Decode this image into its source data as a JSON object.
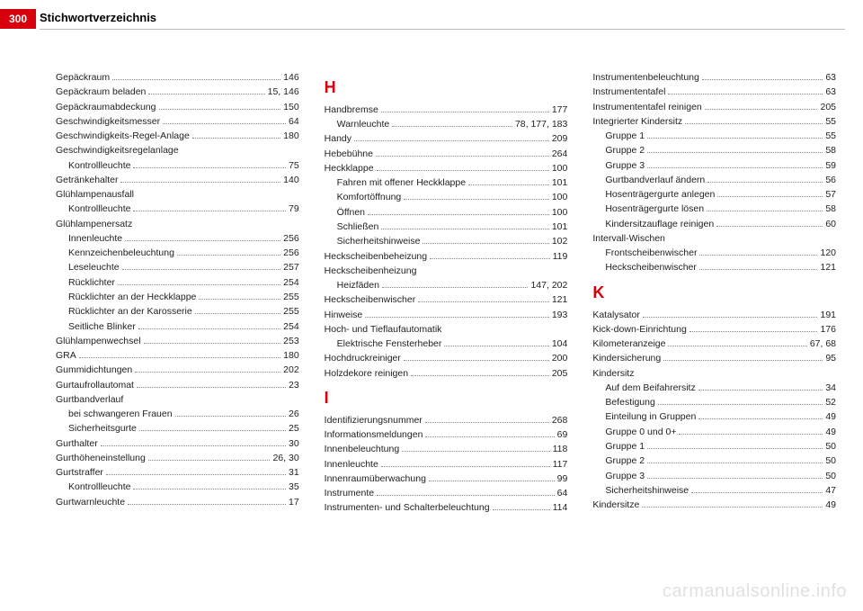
{
  "header": {
    "page_number": "300",
    "title": "Stichwortverzeichnis"
  },
  "watermark": "carmanualsonline.info",
  "columns": [
    [
      {
        "t": "entry",
        "label": "Gepäckraum",
        "page": "146"
      },
      {
        "t": "entry",
        "label": "Gepäckraum beladen",
        "page": "15, 146"
      },
      {
        "t": "entry",
        "label": "Gepäckraumabdeckung",
        "page": "150"
      },
      {
        "t": "entry",
        "label": "Geschwindigkeitsmesser",
        "page": "64"
      },
      {
        "t": "entry",
        "label": "Geschwindigkeits-Regel-Anlage",
        "page": "180"
      },
      {
        "t": "head",
        "label": "Geschwindigkeitsregelanlage"
      },
      {
        "t": "sub",
        "label": "Kontrollleuchte",
        "page": "75"
      },
      {
        "t": "entry",
        "label": "Getränkehalter",
        "page": "140"
      },
      {
        "t": "head",
        "label": "Glühlampenausfall"
      },
      {
        "t": "sub",
        "label": "Kontrollleuchte",
        "page": "79"
      },
      {
        "t": "head",
        "label": "Glühlampenersatz"
      },
      {
        "t": "sub",
        "label": "Innenleuchte",
        "page": "256"
      },
      {
        "t": "sub",
        "label": "Kennzeichenbeleuchtung",
        "page": "256"
      },
      {
        "t": "sub",
        "label": "Leseleuchte",
        "page": "257"
      },
      {
        "t": "sub",
        "label": "Rücklichter",
        "page": "254"
      },
      {
        "t": "sub",
        "label": "Rücklichter an der Heckklappe",
        "page": "255"
      },
      {
        "t": "sub",
        "label": "Rücklichter an der Karosserie",
        "page": "255"
      },
      {
        "t": "sub",
        "label": "Seitliche Blinker",
        "page": "254"
      },
      {
        "t": "entry",
        "label": "Glühlampenwechsel",
        "page": "253"
      },
      {
        "t": "entry",
        "label": "GRA",
        "page": "180"
      },
      {
        "t": "entry",
        "label": "Gummidichtungen",
        "page": "202"
      },
      {
        "t": "entry",
        "label": "Gurtaufrollautomat",
        "page": "23"
      },
      {
        "t": "head",
        "label": "Gurtbandverlauf"
      },
      {
        "t": "sub",
        "label": "bei schwangeren Frauen",
        "page": "26"
      },
      {
        "t": "sub",
        "label": "Sicherheitsgurte",
        "page": "25"
      },
      {
        "t": "entry",
        "label": "Gurthalter",
        "page": "30"
      },
      {
        "t": "entry",
        "label": "Gurthöheneinstellung",
        "page": "26, 30"
      },
      {
        "t": "entry",
        "label": "Gurtstraffer",
        "page": "31"
      },
      {
        "t": "sub",
        "label": "Kontrollleuchte",
        "page": "35"
      },
      {
        "t": "entry",
        "label": "Gurtwarnleuchte",
        "page": "17"
      }
    ],
    [
      {
        "t": "letter",
        "label": "H"
      },
      {
        "t": "entry",
        "label": "Handbremse",
        "page": "177"
      },
      {
        "t": "sub",
        "label": "Warnleuchte",
        "page": "78, 177, 183"
      },
      {
        "t": "entry",
        "label": "Handy",
        "page": "209"
      },
      {
        "t": "entry",
        "label": "Hebebühne",
        "page": "264"
      },
      {
        "t": "entry",
        "label": "Heckklappe",
        "page": "100"
      },
      {
        "t": "sub",
        "label": "Fahren mit offener Heckklappe",
        "page": "101"
      },
      {
        "t": "sub",
        "label": "Komfortöffnung",
        "page": "100"
      },
      {
        "t": "sub",
        "label": "Öffnen",
        "page": "100"
      },
      {
        "t": "sub",
        "label": "Schließen",
        "page": "101"
      },
      {
        "t": "sub",
        "label": "Sicherheitshinweise",
        "page": "102"
      },
      {
        "t": "entry",
        "label": "Heckscheibenbeheizung",
        "page": "119"
      },
      {
        "t": "head",
        "label": "Heckscheibenheizung"
      },
      {
        "t": "sub",
        "label": "Heizfäden",
        "page": "147, 202"
      },
      {
        "t": "entry",
        "label": "Heckscheibenwischer",
        "page": "121"
      },
      {
        "t": "entry",
        "label": "Hinweise",
        "page": "193"
      },
      {
        "t": "head",
        "label": "Hoch- und Tieflaufautomatik"
      },
      {
        "t": "sub",
        "label": "Elektrische Fensterheber",
        "page": "104"
      },
      {
        "t": "entry",
        "label": "Hochdruckreiniger",
        "page": "200"
      },
      {
        "t": "entry",
        "label": "Holzdekore reinigen",
        "page": "205"
      },
      {
        "t": "letter",
        "label": "I"
      },
      {
        "t": "entry",
        "label": "Identifizierungsnummer",
        "page": "268"
      },
      {
        "t": "entry",
        "label": "Informationsmeldungen",
        "page": "69"
      },
      {
        "t": "entry",
        "label": "Innenbeleuchtung",
        "page": "118"
      },
      {
        "t": "entry",
        "label": "Innenleuchte",
        "page": "117"
      },
      {
        "t": "entry",
        "label": "Innenraumüberwachung",
        "page": "99"
      },
      {
        "t": "entry",
        "label": "Instrumente",
        "page": "64"
      },
      {
        "t": "entry",
        "label": "Instrumenten- und Schalterbeleuchtung",
        "page": "114"
      }
    ],
    [
      {
        "t": "entry",
        "label": "Instrumentenbeleuchtung",
        "page": "63"
      },
      {
        "t": "entry",
        "label": "Instrumententafel",
        "page": "63"
      },
      {
        "t": "entry",
        "label": "Instrumententafel reinigen",
        "page": "205"
      },
      {
        "t": "entry",
        "label": "Integrierter Kindersitz",
        "page": "55"
      },
      {
        "t": "sub",
        "label": "Gruppe 1",
        "page": "55"
      },
      {
        "t": "sub",
        "label": "Gruppe 2",
        "page": "58"
      },
      {
        "t": "sub",
        "label": "Gruppe 3",
        "page": "59"
      },
      {
        "t": "sub",
        "label": "Gurtbandverlauf ändern",
        "page": "56"
      },
      {
        "t": "sub",
        "label": "Hosenträgergurte anlegen",
        "page": "57"
      },
      {
        "t": "sub",
        "label": "Hosenträgergurte lösen",
        "page": "58"
      },
      {
        "t": "sub",
        "label": "Kindersitzauflage reinigen",
        "page": "60"
      },
      {
        "t": "head",
        "label": "Intervall-Wischen"
      },
      {
        "t": "sub",
        "label": "Frontscheibenwischer",
        "page": "120"
      },
      {
        "t": "sub",
        "label": "Heckscheibenwischer",
        "page": "121"
      },
      {
        "t": "letter",
        "label": "K"
      },
      {
        "t": "entry",
        "label": "Katalysator",
        "page": "191"
      },
      {
        "t": "entry",
        "label": "Kick-down-Einrichtung",
        "page": "176"
      },
      {
        "t": "entry",
        "label": "Kilometeranzeige",
        "page": "67, 68"
      },
      {
        "t": "entry",
        "label": "Kindersicherung",
        "page": "95"
      },
      {
        "t": "head",
        "label": "Kindersitz"
      },
      {
        "t": "sub",
        "label": "Auf dem Beifahrersitz",
        "page": "34"
      },
      {
        "t": "sub",
        "label": "Befestigung",
        "page": "52"
      },
      {
        "t": "sub",
        "label": "Einteilung in Gruppen",
        "page": "49"
      },
      {
        "t": "sub",
        "label": "Gruppe 0 und 0+",
        "page": "49"
      },
      {
        "t": "sub",
        "label": "Gruppe 1",
        "page": "50"
      },
      {
        "t": "sub",
        "label": "Gruppe 2",
        "page": "50"
      },
      {
        "t": "sub",
        "label": "Gruppe 3",
        "page": "50"
      },
      {
        "t": "sub",
        "label": "Sicherheitshinweise",
        "page": "47"
      },
      {
        "t": "entry",
        "label": "Kindersitze",
        "page": "49"
      }
    ]
  ]
}
